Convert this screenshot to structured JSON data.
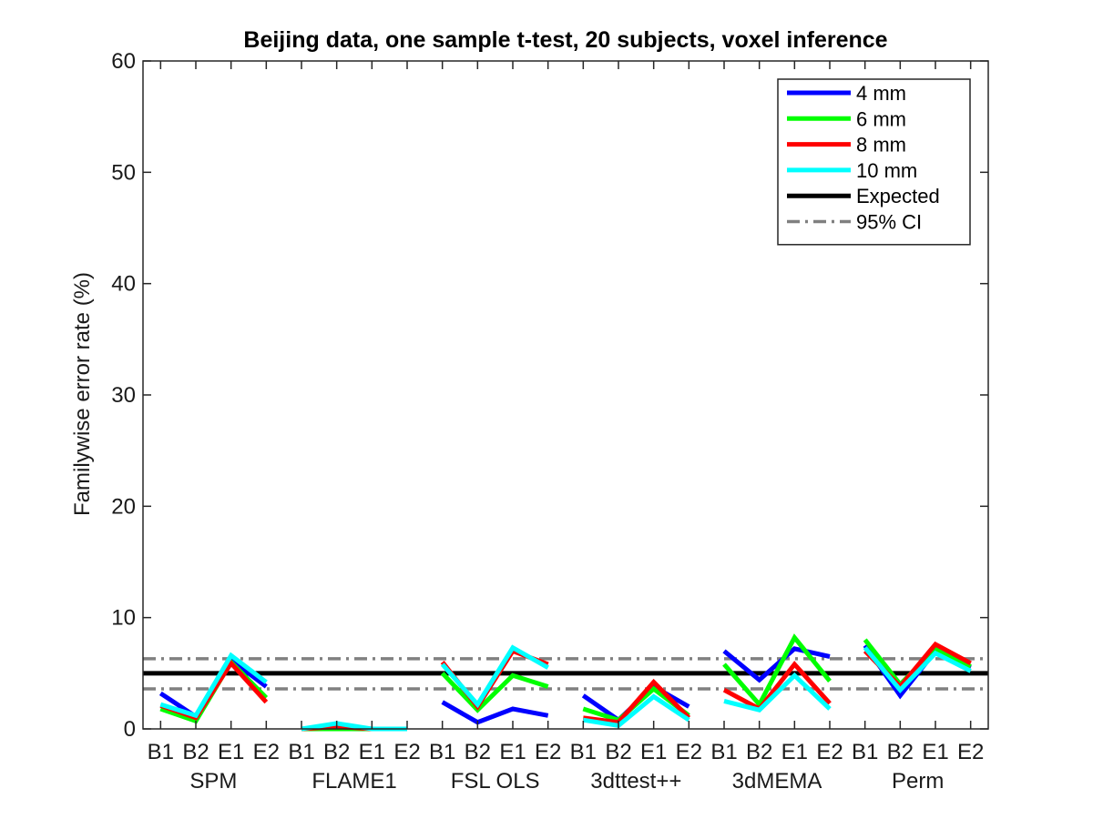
{
  "chart_data": {
    "type": "line",
    "title": "Beijing data, one sample t-test, 20 subjects, voxel inference",
    "ylabel": "Familywise error rate (%)",
    "xlabel": "",
    "ylim": [
      0,
      60
    ],
    "yticks": [
      0,
      10,
      20,
      30,
      40,
      50,
      60
    ],
    "x_ticks": [
      "B1",
      "B2",
      "E1",
      "E2",
      "B1",
      "B2",
      "E1",
      "E2",
      "B1",
      "B2",
      "E1",
      "E2",
      "B1",
      "B2",
      "E1",
      "E2",
      "B1",
      "B2",
      "E1",
      "E2",
      "B1",
      "B2",
      "E1",
      "E2"
    ],
    "groups": [
      "SPM",
      "FLAME1",
      "FSL OLS",
      "3dttest++",
      "3dMEMA",
      "Perm"
    ],
    "expected": 5,
    "ci": [
      3.6,
      6.3
    ],
    "legend_position": "top-right",
    "series": [
      {
        "name": "4 mm",
        "color": "#0000ff",
        "values": [
          3.2,
          1.1,
          6.2,
          3.8,
          0,
          0,
          0,
          0,
          2.4,
          0.6,
          1.8,
          1.2,
          3.0,
          0.8,
          3.8,
          2.0,
          7.0,
          4.4,
          7.2,
          6.5,
          7.5,
          3.0,
          7.0,
          5.5
        ]
      },
      {
        "name": "6 mm",
        "color": "#00ff00",
        "values": [
          1.8,
          0.7,
          6.0,
          2.8,
          0,
          0,
          0,
          0,
          5.0,
          1.7,
          4.8,
          3.8,
          1.8,
          0.8,
          3.6,
          1.2,
          5.8,
          2.2,
          8.2,
          4.3,
          8.0,
          4.0,
          7.2,
          5.6
        ]
      },
      {
        "name": "8 mm",
        "color": "#ff0000",
        "values": [
          2.1,
          1.0,
          5.9,
          2.4,
          0,
          0.2,
          0,
          0,
          6.0,
          2.0,
          7.0,
          5.8,
          1.0,
          0.6,
          4.2,
          1.0,
          3.5,
          1.8,
          5.8,
          2.3,
          7.0,
          3.8,
          7.6,
          5.9
        ]
      },
      {
        "name": "10 mm",
        "color": "#00ffff",
        "values": [
          2.2,
          1.2,
          6.6,
          4.2,
          0,
          0.5,
          0,
          0,
          5.8,
          2.2,
          7.3,
          5.5,
          0.8,
          0.3,
          2.9,
          0.8,
          2.5,
          1.7,
          4.8,
          1.8,
          7.3,
          3.5,
          6.8,
          5.2
        ]
      }
    ],
    "legend": [
      {
        "label": "4 mm",
        "color": "#0000ff",
        "style": "solid"
      },
      {
        "label": "6 mm",
        "color": "#00ff00",
        "style": "solid"
      },
      {
        "label": "8 mm",
        "color": "#ff0000",
        "style": "solid"
      },
      {
        "label": "10 mm",
        "color": "#00ffff",
        "style": "solid"
      },
      {
        "label": "Expected",
        "color": "#000000",
        "style": "solid"
      },
      {
        "label": "95% CI",
        "color": "#808080",
        "style": "dashdot"
      }
    ]
  }
}
